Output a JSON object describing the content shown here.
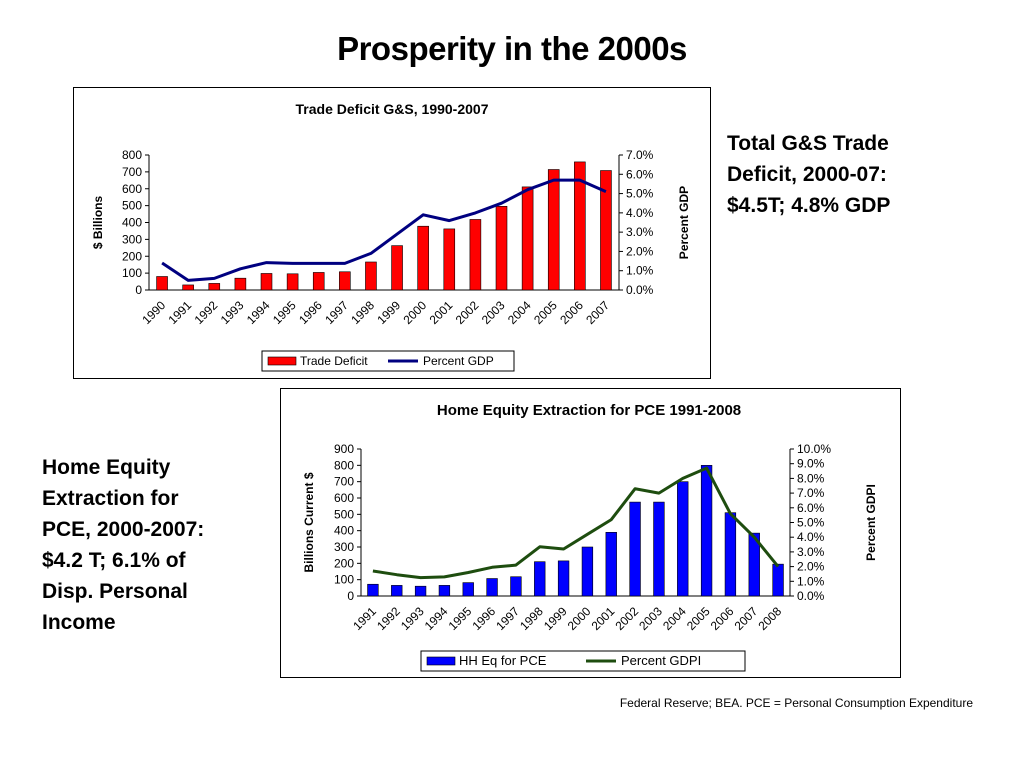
{
  "slide": {
    "title": "Prosperity in the 2000s",
    "side_text_1": "Total G&S Trade\nDeficit, 2000-07:\n$4.5T; 4.8% GDP",
    "side_text_2": "Home Equity\nExtraction for\nPCE, 2000-2007:\n$4.2 T; 6.1% of\nDisp. Personal\nIncome",
    "source": "Federal Reserve; BEA.  PCE = Personal Consumption Expenditure"
  },
  "colors": {
    "chart1_bar": "#ff0000",
    "chart1_line": "#000080",
    "chart2_bar": "#0000ff",
    "chart2_line": "#1e4d0f"
  },
  "chart_data": [
    {
      "type": "bar",
      "title": "Trade Deficit G&S, 1990-2007",
      "xlabel": "",
      "ylabel": "$ Billions",
      "y2label": "Percent GDP",
      "categories": [
        "1990",
        "1991",
        "1992",
        "1993",
        "1994",
        "1995",
        "1996",
        "1997",
        "1998",
        "1999",
        "2000",
        "2001",
        "2002",
        "2003",
        "2004",
        "2005",
        "2006",
        "2007"
      ],
      "ylim": [
        0,
        800
      ],
      "yticks": [
        "0",
        "100",
        "200",
        "300",
        "400",
        "500",
        "600",
        "700",
        "800"
      ],
      "y2lim": [
        0,
        0.07
      ],
      "y2ticks": [
        "0.0%",
        "1.0%",
        "2.0%",
        "3.0%",
        "4.0%",
        "5.0%",
        "6.0%",
        "7.0%"
      ],
      "legend_position": "bottom",
      "grid": false,
      "series": [
        {
          "name": "Trade Deficit",
          "type": "bar",
          "axis": "left",
          "values": [
            80,
            30,
            39,
            70,
            98,
            96,
            104,
            108,
            166,
            263,
            378,
            362,
            418,
            496,
            611,
            714,
            759,
            708
          ]
        },
        {
          "name": "Percent GDP",
          "type": "line",
          "axis": "right",
          "values": [
            0.014,
            0.005,
            0.006,
            0.011,
            0.0142,
            0.0138,
            0.0138,
            0.0138,
            0.019,
            0.029,
            0.039,
            0.036,
            0.04,
            0.045,
            0.052,
            0.057,
            0.057,
            0.051
          ]
        }
      ]
    },
    {
      "type": "bar",
      "title": "Home Equity Extraction for PCE 1991-2008",
      "xlabel": "",
      "ylabel": "Billions Current $",
      "y2label": "Percent GDPI",
      "categories": [
        "1991",
        "1992",
        "1993",
        "1994",
        "1995",
        "1996",
        "1997",
        "1998",
        "1999",
        "2000",
        "2001",
        "2002",
        "2003",
        "2004",
        "2005",
        "2006",
        "2007",
        "2008"
      ],
      "ylim": [
        0,
        900
      ],
      "yticks": [
        "0",
        "100",
        "200",
        "300",
        "400",
        "500",
        "600",
        "700",
        "800",
        "900"
      ],
      "y2lim": [
        0,
        0.1
      ],
      "y2ticks": [
        "0.0%",
        "1.0%",
        "2.0%",
        "3.0%",
        "4.0%",
        "5.0%",
        "6.0%",
        "7.0%",
        "8.0%",
        "9.0%",
        "10.0%"
      ],
      "legend_position": "bottom",
      "grid": false,
      "series": [
        {
          "name": "HH Eq for PCE",
          "type": "bar",
          "axis": "left",
          "values": [
            72,
            65,
            60,
            65,
            82,
            107,
            118,
            210,
            215,
            300,
            390,
            575,
            575,
            700,
            800,
            510,
            385,
            195
          ]
        },
        {
          "name": "Percent GDPI",
          "type": "line",
          "axis": "right",
          "values": [
            0.017,
            0.0145,
            0.0125,
            0.013,
            0.016,
            0.0195,
            0.021,
            0.0335,
            0.032,
            0.042,
            0.052,
            0.073,
            0.07,
            0.08,
            0.087,
            0.056,
            0.04,
            0.02
          ]
        }
      ]
    }
  ]
}
